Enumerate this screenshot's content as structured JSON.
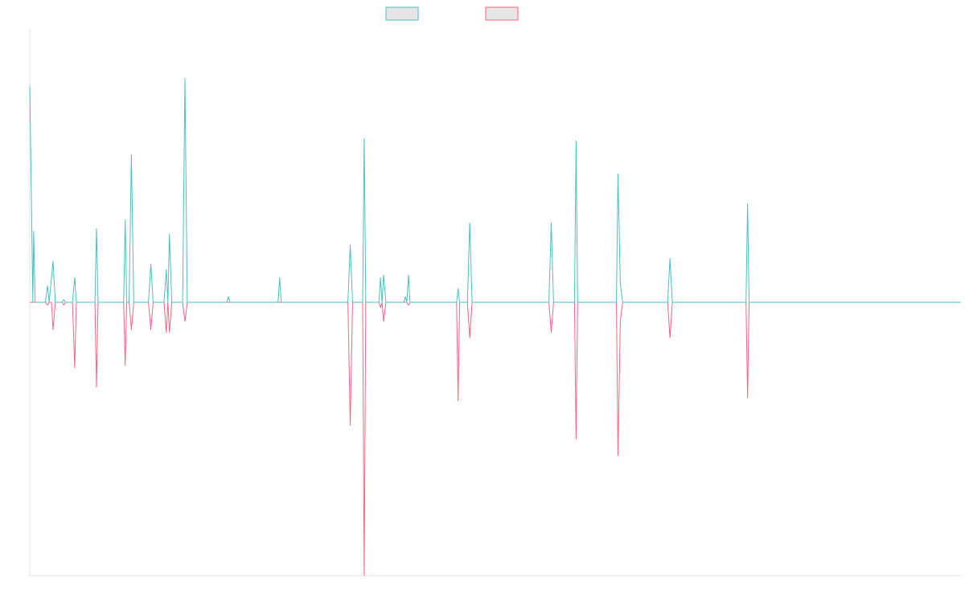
{
  "chart_data": {
    "type": "line",
    "title": "",
    "xlabel": "",
    "ylabel": "",
    "ylim": [
      -1,
      1
    ],
    "grid": false,
    "legend_position": "top-center",
    "colors": {
      "series_0": "#4bc0c0",
      "series_0_fill": "#e6e6e6",
      "series_1": "#ff6384",
      "series_1_fill": "#e6e6e6",
      "axis": "#e6e6e6"
    },
    "x": [
      0,
      120
    ],
    "series": [
      {
        "color": "#4bc0c0",
        "points": [
          [
            0,
            0.79
          ],
          [
            0.4,
            0
          ],
          [
            0.5,
            0.26
          ],
          [
            0.7,
            0
          ],
          [
            2.0,
            0
          ],
          [
            2.3,
            0.06
          ],
          [
            2.5,
            0
          ],
          [
            3.0,
            0.15
          ],
          [
            3.3,
            0
          ],
          [
            4.2,
            0
          ],
          [
            4.4,
            0.01
          ],
          [
            4.6,
            0
          ],
          [
            5.5,
            0
          ],
          [
            5.8,
            0.09
          ],
          [
            6.0,
            0
          ],
          [
            8.4,
            0
          ],
          [
            8.6,
            0.27
          ],
          [
            8.8,
            0
          ],
          [
            12.1,
            0
          ],
          [
            12.3,
            0.3
          ],
          [
            12.5,
            0
          ],
          [
            12.8,
            0
          ],
          [
            13.1,
            0.54
          ],
          [
            13.4,
            0
          ],
          [
            15.3,
            0
          ],
          [
            15.6,
            0.14
          ],
          [
            15.9,
            0
          ],
          [
            17.3,
            0
          ],
          [
            17.6,
            0.12
          ],
          [
            17.8,
            0
          ],
          [
            18.0,
            0.25
          ],
          [
            18.3,
            0
          ],
          [
            19.7,
            0
          ],
          [
            20.0,
            0.82
          ],
          [
            20.3,
            0
          ],
          [
            25.4,
            0
          ],
          [
            25.6,
            0.02
          ],
          [
            25.8,
            0
          ],
          [
            32.0,
            0
          ],
          [
            32.2,
            0.09
          ],
          [
            32.4,
            0
          ],
          [
            41.0,
            0
          ],
          [
            41.3,
            0.21
          ],
          [
            41.6,
            0
          ],
          [
            42.9,
            0
          ],
          [
            43.1,
            0.6
          ],
          [
            43.3,
            0
          ],
          [
            45.0,
            0
          ],
          [
            45.2,
            0.09
          ],
          [
            45.4,
            0
          ],
          [
            45.6,
            0.1
          ],
          [
            45.9,
            0
          ],
          [
            48.2,
            0
          ],
          [
            48.4,
            0.02
          ],
          [
            48.6,
            0
          ],
          [
            48.8,
            0.1
          ],
          [
            49.0,
            0
          ],
          [
            55.0,
            0
          ],
          [
            55.2,
            0.05
          ],
          [
            55.4,
            0
          ],
          [
            56.4,
            0
          ],
          [
            56.7,
            0.29
          ],
          [
            57.0,
            0
          ],
          [
            66.9,
            0
          ],
          [
            67.2,
            0.29
          ],
          [
            67.5,
            0
          ],
          [
            70.2,
            0
          ],
          [
            70.4,
            0.59
          ],
          [
            70.6,
            0
          ],
          [
            75.6,
            0
          ],
          [
            75.8,
            0.47
          ],
          [
            76.1,
            0.07
          ],
          [
            76.4,
            0
          ],
          [
            82.2,
            0
          ],
          [
            82.5,
            0.16
          ],
          [
            82.8,
            0
          ],
          [
            92.3,
            0
          ],
          [
            92.5,
            0.36
          ],
          [
            92.7,
            0
          ],
          [
            120,
            0
          ]
        ]
      },
      {
        "color": "#ff6384",
        "points": [
          [
            0,
            0
          ],
          [
            2.0,
            0
          ],
          [
            2.3,
            -0.01
          ],
          [
            2.5,
            0
          ],
          [
            2.8,
            0
          ],
          [
            3.0,
            -0.1
          ],
          [
            3.3,
            0
          ],
          [
            4.2,
            0
          ],
          [
            4.4,
            -0.01
          ],
          [
            4.6,
            0
          ],
          [
            5.5,
            0
          ],
          [
            5.8,
            -0.24
          ],
          [
            6.0,
            0
          ],
          [
            8.4,
            0
          ],
          [
            8.6,
            -0.31
          ],
          [
            8.8,
            0
          ],
          [
            12.1,
            0
          ],
          [
            12.3,
            -0.23
          ],
          [
            12.5,
            0
          ],
          [
            12.8,
            0
          ],
          [
            13.1,
            -0.1
          ],
          [
            13.4,
            0
          ],
          [
            15.3,
            0
          ],
          [
            15.6,
            -0.1
          ],
          [
            15.9,
            0
          ],
          [
            17.3,
            0
          ],
          [
            17.6,
            -0.11
          ],
          [
            17.8,
            0
          ],
          [
            18.0,
            -0.11
          ],
          [
            18.3,
            0
          ],
          [
            19.7,
            0
          ],
          [
            20.0,
            -0.07
          ],
          [
            20.3,
            0
          ],
          [
            41.0,
            0
          ],
          [
            41.3,
            -0.45
          ],
          [
            41.6,
            0
          ],
          [
            42.9,
            0
          ],
          [
            43.1,
            -1.0
          ],
          [
            43.3,
            0
          ],
          [
            45.0,
            0
          ],
          [
            45.2,
            -0.02
          ],
          [
            45.4,
            0
          ],
          [
            45.6,
            -0.07
          ],
          [
            45.9,
            0
          ],
          [
            48.2,
            0
          ],
          [
            48.4,
            0
          ],
          [
            48.6,
            0
          ],
          [
            48.8,
            -0.01
          ],
          [
            49.0,
            0
          ],
          [
            55.0,
            0
          ],
          [
            55.2,
            -0.36
          ],
          [
            55.4,
            0
          ],
          [
            56.4,
            0
          ],
          [
            56.7,
            -0.13
          ],
          [
            57.0,
            0
          ],
          [
            66.9,
            0
          ],
          [
            67.2,
            -0.11
          ],
          [
            67.5,
            0
          ],
          [
            70.2,
            0
          ],
          [
            70.4,
            -0.5
          ],
          [
            70.6,
            0
          ],
          [
            75.6,
            0
          ],
          [
            75.8,
            -0.56
          ],
          [
            76.1,
            -0.07
          ],
          [
            76.4,
            0
          ],
          [
            82.2,
            0
          ],
          [
            82.5,
            -0.13
          ],
          [
            82.8,
            0
          ],
          [
            92.3,
            0
          ],
          [
            92.5,
            -0.35
          ],
          [
            92.7,
            0
          ],
          [
            120,
            0
          ]
        ]
      }
    ]
  }
}
